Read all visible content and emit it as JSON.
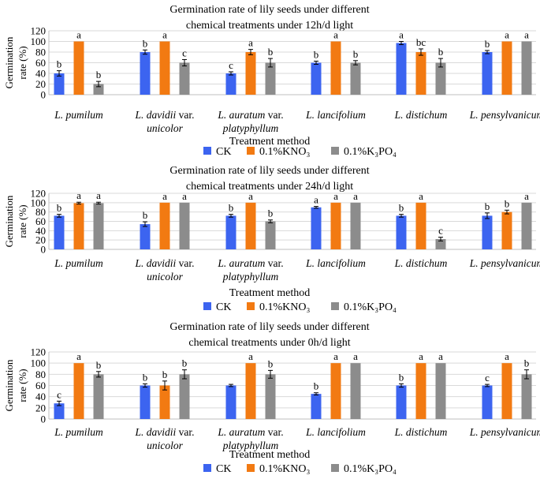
{
  "xlabel": "Treatment method",
  "ylabel": "Germination rate (%)",
  "ylabel_lines": [
    "Germination",
    "rate (%)"
  ],
  "legend": [
    {
      "name": "CK",
      "color": "#3c64f0"
    },
    {
      "name": "0.1%KNO₃",
      "color": "#f27a12"
    },
    {
      "name": "0.1%K₃PO₄",
      "color": "#8c8c8c"
    }
  ],
  "categories": [
    {
      "italic": "L. pumilum",
      "line2": ""
    },
    {
      "italic": "L. davidii",
      "roman": " var.",
      "line2": "unicolor"
    },
    {
      "italic": "L. auratum",
      "roman": " var.",
      "line2": "platyphyllum"
    },
    {
      "italic": "L. lancifolium",
      "line2": ""
    },
    {
      "italic": "L. distichum",
      "line2": ""
    },
    {
      "italic": "L. pensylvanicum",
      "line2": ""
    }
  ],
  "chart_data": [
    {
      "type": "bar",
      "title": "Germination rate of lily seeds under different chemical treatments under 12h/d light",
      "title_lines": [
        "Germination rate of lily seeds under different",
        "chemical treatments under 12h/d light"
      ],
      "ylim": [
        0,
        120
      ],
      "yticks": [
        0,
        20,
        40,
        60,
        80,
        100,
        120
      ],
      "series": [
        {
          "name": "CK",
          "values": [
            40,
            80,
            40,
            60,
            97,
            80
          ],
          "errors": [
            5,
            4,
            3,
            3,
            3,
            3
          ],
          "letters": [
            "b",
            "b",
            "c",
            "b",
            "a",
            "b"
          ]
        },
        {
          "name": "0.1%KNO₃",
          "values": [
            100,
            100,
            80,
            100,
            80,
            100
          ],
          "errors": [
            0,
            0,
            5,
            0,
            6,
            0
          ],
          "letters": [
            "a",
            "a",
            "a",
            "a",
            "bc",
            "a"
          ]
        },
        {
          "name": "0.1%K₃PO₄",
          "values": [
            20,
            60,
            60,
            60,
            60,
            100
          ],
          "errors": [
            5,
            6,
            8,
            4,
            8,
            0
          ],
          "letters": [
            "b",
            "c",
            "b",
            "b",
            "b",
            "a"
          ]
        }
      ]
    },
    {
      "type": "bar",
      "title": "Germination rate of lily seeds under different chemical treatments under 24h/d light",
      "title_lines": [
        "Germination rate of lily seeds under different",
        "chemical treatments under 24h/d light"
      ],
      "ylim": [
        0,
        120
      ],
      "yticks": [
        0,
        20,
        40,
        60,
        80,
        100,
        120
      ],
      "series": [
        {
          "name": "CK",
          "values": [
            72,
            54,
            72,
            90,
            72,
            72
          ],
          "errors": [
            3,
            5,
            3,
            2,
            3,
            6
          ],
          "letters": [
            "b",
            "b",
            "b",
            "a",
            "b",
            "b"
          ]
        },
        {
          "name": "0.1%KNO₃",
          "values": [
            99,
            100,
            100,
            100,
            100,
            80
          ],
          "errors": [
            2,
            0,
            0,
            0,
            0,
            4
          ],
          "letters": [
            "a",
            "a",
            "a",
            "a",
            "a",
            "b"
          ]
        },
        {
          "name": "0.1%K₃PO₄",
          "values": [
            99,
            100,
            60,
            100,
            22,
            100
          ],
          "errors": [
            2,
            0,
            3,
            0,
            4,
            0
          ],
          "letters": [
            "a",
            "a",
            "b",
            "a",
            "c",
            "a"
          ]
        }
      ]
    },
    {
      "type": "bar",
      "title": "Germination rate of lily seeds under different chemical treatments under 0h/d light",
      "title_lines": [
        "Germination rate of lily seeds under different",
        "chemical treatments under 0h/d light"
      ],
      "ylim": [
        0,
        120
      ],
      "yticks": [
        0,
        20,
        40,
        60,
        80,
        100,
        120
      ],
      "series": [
        {
          "name": "CK",
          "values": [
            28,
            60,
            60,
            45,
            60,
            60
          ],
          "errors": [
            4,
            3,
            2,
            2,
            3,
            2
          ],
          "letters": [
            "c",
            "b",
            "",
            "b",
            "b",
            "c"
          ]
        },
        {
          "name": "0.1%KNO₃",
          "values": [
            100,
            60,
            100,
            100,
            100,
            100
          ],
          "errors": [
            0,
            8,
            0,
            0,
            0,
            0
          ],
          "letters": [
            "a",
            "b",
            "a",
            "a",
            "a",
            "a"
          ]
        },
        {
          "name": "0.1%K₃PO₄",
          "values": [
            80,
            80,
            80,
            100,
            100,
            80
          ],
          "errors": [
            5,
            8,
            7,
            0,
            0,
            8
          ],
          "letters": [
            "b",
            "b",
            "b",
            "a",
            "a",
            "b"
          ]
        }
      ]
    }
  ]
}
